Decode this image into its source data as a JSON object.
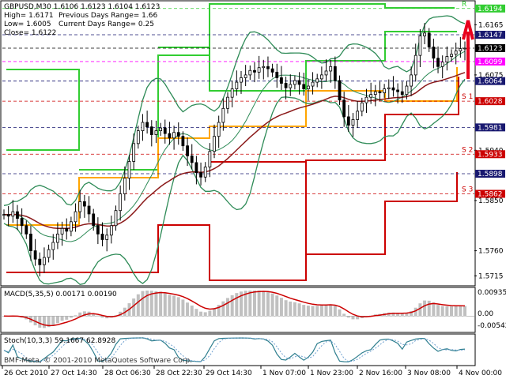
{
  "window": {
    "symbol_line": "GBPUSD,M30  1.6106 1.6123 1.6104 1.6123",
    "high_line": "High= 1.6171",
    "low_line": "Low= 1.6005",
    "close_line": "Close= 1.6122",
    "prev_range": "Previous Days Range= 1.66",
    "curr_range": "Current Days Range= 0.25",
    "copyright": "BMF-Meta, © 2001-2010 MetaQuotes Software Corp."
  },
  "colors": {
    "background": "#ffffff",
    "candles": "#000000",
    "bollinger": "#2e8b57",
    "ma": "#8b1a1a",
    "resistance": "#32cd32",
    "support": "#cc0000",
    "pivot": "#ffa500",
    "macd_hist": "#c0c0c0",
    "macd_signal": "#cc0000",
    "stoch_main": "#2f7f8f",
    "stoch_signal": "#6fa0d0"
  },
  "chart_data": [
    {
      "type": "candlestick",
      "title": "GBPUSD,M30",
      "ylim": [
        1.57,
        1.6205
      ],
      "y_ticks": [
        "1.6165",
        "1.6075",
        "1.5940",
        "1.5850",
        "1.5760",
        "1.5715"
      ],
      "level_labels": [
        {
          "text": "1.6194",
          "value": 1.6194,
          "color": "#32cd32",
          "marker": "R"
        },
        {
          "text": "1.6147",
          "value": 1.6147,
          "color": "#191970"
        },
        {
          "text": "1.6123",
          "value": 1.6123,
          "color": "#000000"
        },
        {
          "text": "1.6099",
          "value": 1.6099,
          "color": "#ff00ff"
        },
        {
          "text": "1.6064",
          "value": 1.6064,
          "color": "#191970"
        },
        {
          "text": "1.6028",
          "value": 1.6028,
          "color": "#cc0000",
          "marker": "S 1"
        },
        {
          "text": "1.5981",
          "value": 1.5981,
          "color": "#191970"
        },
        {
          "text": "1.5933",
          "value": 1.5933,
          "color": "#cc0000",
          "marker": "S 2"
        },
        {
          "text": "1.5898",
          "value": 1.5898,
          "color": "#191970"
        },
        {
          "text": "1.5862",
          "value": 1.5862,
          "color": "#cc0000",
          "marker": "S 3"
        }
      ],
      "x_labels": [
        "26 Oct 2010",
        "27 Oct 14:30",
        "28 Oct 06:30",
        "28 Oct 22:30",
        "29 Oct 14:30",
        "1 Nov 07:00",
        "1 Nov 23:00",
        "2 Nov 16:00",
        "3 Nov 08:00",
        "4 Nov 00:00"
      ],
      "close_series": [
        1.5825,
        1.5822,
        1.583,
        1.5818,
        1.5805,
        1.579,
        1.576,
        1.5745,
        1.5735,
        1.5748,
        1.5762,
        1.5775,
        1.579,
        1.58,
        1.5795,
        1.5812,
        1.583,
        1.5848,
        1.584,
        1.5826,
        1.5805,
        1.579,
        1.578,
        1.5788,
        1.5805,
        1.5832,
        1.5862,
        1.589,
        1.592,
        1.5952,
        1.5975,
        1.599,
        1.5982,
        1.5968,
        1.5975,
        1.598,
        1.597,
        1.5962,
        1.5972,
        1.5965,
        1.5948,
        1.593,
        1.5918,
        1.59,
        1.5892,
        1.591,
        1.5938,
        1.5965,
        1.599,
        1.6015,
        1.6035,
        1.605,
        1.6062,
        1.607,
        1.6075,
        1.6083,
        1.608,
        1.6088,
        1.609,
        1.6086,
        1.608,
        1.607,
        1.606,
        1.6052,
        1.6058,
        1.6065,
        1.6058,
        1.605,
        1.6055,
        1.6062,
        1.6068,
        1.6075,
        1.6082,
        1.609,
        1.6065,
        1.603,
        1.6,
        1.5985,
        1.5995,
        1.601,
        1.6025,
        1.6035,
        1.604,
        1.6045,
        1.6043,
        1.605,
        1.6052,
        1.6048,
        1.6045,
        1.604,
        1.6055,
        1.6075,
        1.611,
        1.6145,
        1.615,
        1.6125,
        1.6105,
        1.609,
        1.6098,
        1.6108,
        1.6112,
        1.6118,
        1.6122,
        1.6123
      ]
    },
    {
      "type": "macd",
      "title": "MACD(5,35,5) 0.00171 0.00190",
      "y_ticks": [
        "0.00935",
        "0.00",
        "-0.00542"
      ],
      "ylim": [
        -0.00542,
        0.00935
      ]
    },
    {
      "type": "stochastic",
      "title": "Stoch(10,3,3) 59.1667 62.8928",
      "ylim": [
        0,
        100
      ]
    }
  ]
}
